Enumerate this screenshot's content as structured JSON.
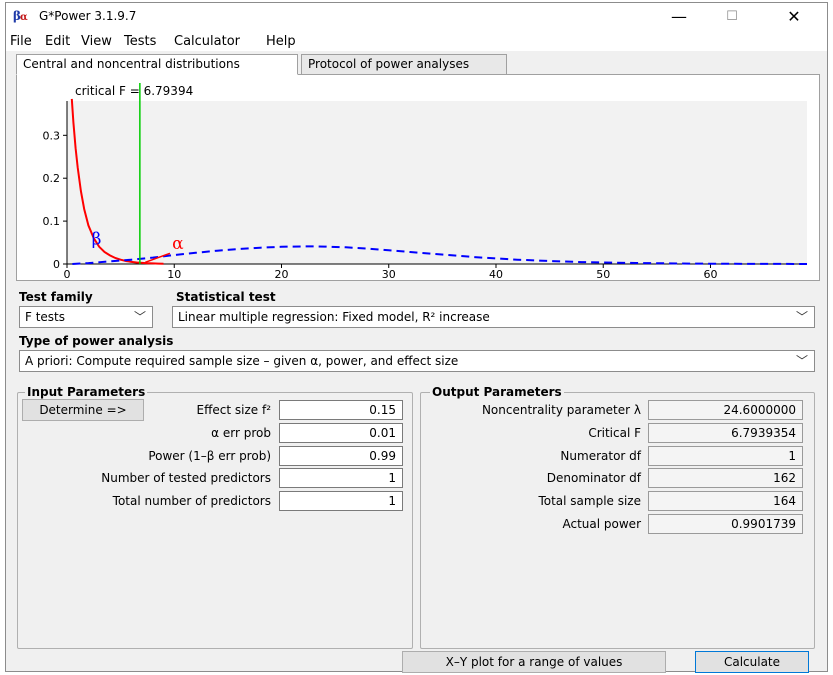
{
  "window": {
    "title": "G*Power 3.1.9.7",
    "icon_name": "gpower-beta-alpha-icon",
    "controls": {
      "minimize": "—",
      "maximize": "☐",
      "close": "✕"
    }
  },
  "menu": {
    "items": [
      {
        "label": "File"
      },
      {
        "label": "Edit"
      },
      {
        "label": "View"
      },
      {
        "label": "Tests"
      },
      {
        "label": "Calculator"
      },
      {
        "label": "Help"
      }
    ]
  },
  "tabs": [
    {
      "label": "Central and noncentral distributions",
      "active": true
    },
    {
      "label": "Protocol of power analyses",
      "active": false
    }
  ],
  "chart_data": {
    "type": "line",
    "annotation": "critical F = 6.79394",
    "critical_value": 6.79394,
    "beta_label": "β",
    "alpha_label": "α",
    "xlim": [
      0,
      69
    ],
    "ylim": [
      0,
      0.38
    ],
    "x_ticks": [
      {
        "value": 0,
        "label": "0"
      },
      {
        "value": 10,
        "label": "10"
      },
      {
        "value": 20,
        "label": "20"
      },
      {
        "value": 30,
        "label": "30"
      },
      {
        "value": 40,
        "label": "40"
      },
      {
        "value": 50,
        "label": "50"
      },
      {
        "value": 60,
        "label": "60"
      }
    ],
    "y_ticks": [
      {
        "value": 0,
        "label": "0"
      },
      {
        "value": 0.1,
        "label": "0.1"
      },
      {
        "value": 0.2,
        "label": "0.2"
      },
      {
        "value": 0.3,
        "label": "0.3"
      }
    ],
    "series": [
      {
        "style": "solid",
        "color": "#ff0000",
        "x": [
          0.45,
          0.6,
          0.8,
          1.0,
          1.3,
          1.6,
          2.0,
          2.5,
          3.0,
          3.5,
          4.0,
          4.5,
          5.0,
          5.5,
          6.0,
          6.5,
          7.0,
          7.5,
          8.0,
          8.5,
          9.0
        ],
        "y": [
          0.385,
          0.33,
          0.27,
          0.225,
          0.17,
          0.128,
          0.09,
          0.06,
          0.04,
          0.028,
          0.02,
          0.014,
          0.01,
          0.007,
          0.005,
          0.0035,
          0.0025,
          0.0018,
          0.0013,
          0.001,
          0.0007
        ]
      },
      {
        "style": "dashed",
        "color": "#0000ff",
        "x": [
          0.5,
          2,
          4,
          6,
          8,
          10,
          12,
          14,
          16,
          18,
          20,
          22,
          23,
          24,
          26,
          28,
          30,
          32,
          34,
          36,
          38,
          40,
          42,
          45,
          48,
          51,
          54,
          58,
          62,
          66,
          69
        ],
        "y": [
          0.0,
          0.002,
          0.006,
          0.01,
          0.015,
          0.021,
          0.026,
          0.031,
          0.035,
          0.038,
          0.04,
          0.041,
          0.041,
          0.0405,
          0.039,
          0.036,
          0.032,
          0.028,
          0.024,
          0.02,
          0.016,
          0.013,
          0.01,
          0.007,
          0.0045,
          0.003,
          0.002,
          0.001,
          0.0005,
          0.0002,
          0.0001
        ]
      }
    ],
    "colors": {
      "h0": "#ff0000",
      "h1": "#0000ff",
      "critical": "#00cc00"
    }
  },
  "test_family": {
    "label": "Test family",
    "value": "F tests"
  },
  "statistical_test": {
    "label": "Statistical test",
    "value": "Linear multiple regression: Fixed model, R² increase"
  },
  "power_analysis": {
    "label": "Type of power analysis",
    "value": "A priori: Compute required sample size – given α, power, and effect size"
  },
  "input": {
    "label": "Input Parameters",
    "determine_label": "Determine =>",
    "rows": [
      {
        "label": "Effect size f²",
        "value": "0.15"
      },
      {
        "label": "α err prob",
        "value": "0.01"
      },
      {
        "label": "Power (1–β err prob)",
        "value": "0.99"
      },
      {
        "label": "Number of tested predictors",
        "value": "1"
      },
      {
        "label": "Total number of predictors",
        "value": "1"
      }
    ]
  },
  "output": {
    "label": "Output Parameters",
    "rows": [
      {
        "label": "Noncentrality parameter λ",
        "value": "24.6000000"
      },
      {
        "label": "Critical F",
        "value": "6.7939354"
      },
      {
        "label": "Numerator df",
        "value": "1"
      },
      {
        "label": "Denominator df",
        "value": "162"
      },
      {
        "label": "Total sample size",
        "value": "164"
      },
      {
        "label": "Actual power",
        "value": "0.9901739"
      }
    ]
  },
  "buttons": {
    "xy_plot": "X–Y plot for a range of values",
    "calculate": "Calculate"
  }
}
